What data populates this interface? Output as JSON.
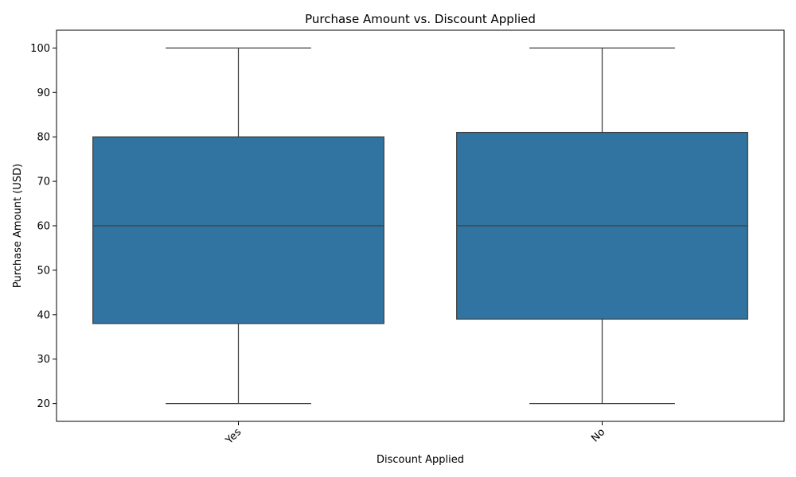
{
  "chart_data": {
    "type": "box",
    "title": "Purchase Amount vs. Discount Applied",
    "xlabel": "Discount Applied",
    "ylabel": "Purchase Amount (USD)",
    "ylim": [
      16,
      104
    ],
    "yticks": [
      20,
      30,
      40,
      50,
      60,
      70,
      80,
      90,
      100
    ],
    "ytick_labels": [
      "20",
      "30",
      "40",
      "50",
      "60",
      "70",
      "80",
      "90",
      "100"
    ],
    "categories": [
      "Yes",
      "No"
    ],
    "boxes": [
      {
        "category": "Yes",
        "min": 20,
        "q1": 38,
        "median": 60,
        "q3": 80,
        "max": 100
      },
      {
        "category": "No",
        "min": 20,
        "q1": 39,
        "median": 60,
        "q3": 81,
        "max": 100
      }
    ],
    "grid": false,
    "colors": {
      "box_fill": "#3274a1",
      "line": "#3f3f3f",
      "axis": "#000000"
    }
  }
}
